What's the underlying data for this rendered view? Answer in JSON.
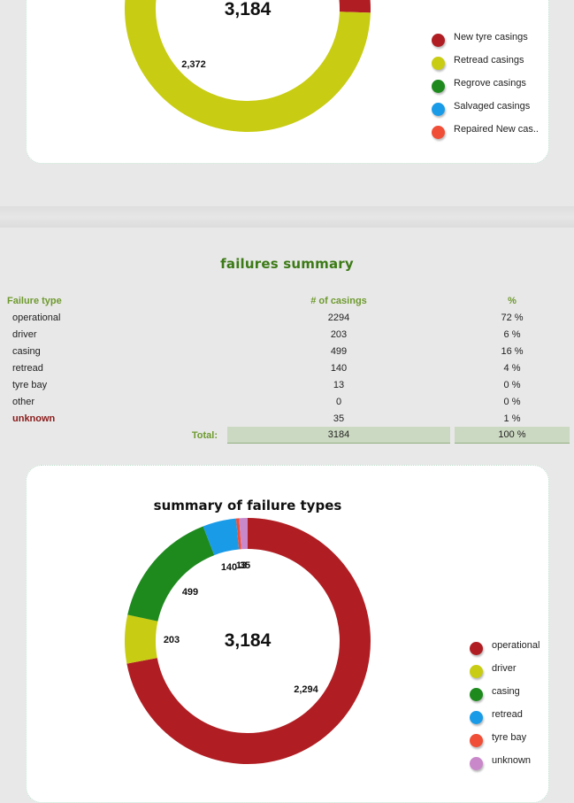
{
  "top_section": {
    "center_total": "3,184",
    "legend": [
      {
        "label": "New tyre casings",
        "color": "#b01e23"
      },
      {
        "label": "Retread casings",
        "color": "#c8cc12"
      },
      {
        "label": "Regrove casings",
        "color": "#1e8a1e"
      },
      {
        "label": "Salvaged casings",
        "color": "#1a9be8"
      },
      {
        "label": "Repaired New cas..",
        "color": "#f04e37"
      }
    ]
  },
  "failures_summary": {
    "title": "failures summary",
    "headers": {
      "type": "Failure type",
      "count": "# of casings",
      "pct": "%"
    },
    "rows": [
      {
        "type": "operational",
        "count": "2294",
        "pct": "72 %"
      },
      {
        "type": "driver",
        "count": "203",
        "pct": "6 %"
      },
      {
        "type": "casing",
        "count": "499",
        "pct": "16 %"
      },
      {
        "type": "retread",
        "count": "140",
        "pct": "4 %"
      },
      {
        "type": "tyre bay",
        "count": "13",
        "pct": "0 %"
      },
      {
        "type": "other",
        "count": "0",
        "pct": "0 %"
      },
      {
        "type": "unknown",
        "count": "35",
        "pct": "1 %"
      }
    ],
    "total": {
      "label": "Total:",
      "count": "3184",
      "pct": "100 %"
    }
  },
  "bottom_section": {
    "center_total": "3,184",
    "legend": [
      {
        "label": "operational",
        "color": "#b01e23"
      },
      {
        "label": "driver",
        "color": "#c8cc12"
      },
      {
        "label": "casing",
        "color": "#1e8a1e"
      },
      {
        "label": "retread",
        "color": "#1a9be8"
      },
      {
        "label": "tyre bay",
        "color": "#f04e37"
      },
      {
        "label": "unknown",
        "color": "#c988c9"
      }
    ]
  },
  "chart_data": [
    {
      "type": "pie",
      "title": "",
      "total": 3184,
      "categories": [
        "New tyre casings",
        "Retread casings",
        "Regrove casings",
        "Salvaged casings",
        "Repaired New cas.."
      ],
      "values": [
        812,
        2372,
        0,
        0,
        0
      ],
      "value_labels": [
        "",
        "2,372",
        "",
        "",
        ""
      ],
      "colors": [
        "#b01e23",
        "#c8cc12",
        "#1e8a1e",
        "#1a9be8",
        "#f04e37"
      ],
      "legend_position": "right"
    },
    {
      "type": "pie",
      "title": "summary of failure types",
      "total": 3184,
      "categories": [
        "operational",
        "driver",
        "casing",
        "retread",
        "tyre bay",
        "unknown"
      ],
      "values": [
        2294,
        203,
        499,
        140,
        13,
        35
      ],
      "value_labels": [
        "2,294",
        "203",
        "499",
        "140",
        "13",
        "35"
      ],
      "colors": [
        "#b01e23",
        "#c8cc12",
        "#1e8a1e",
        "#1a9be8",
        "#f04e37",
        "#c988c9"
      ],
      "legend_position": "right"
    }
  ]
}
